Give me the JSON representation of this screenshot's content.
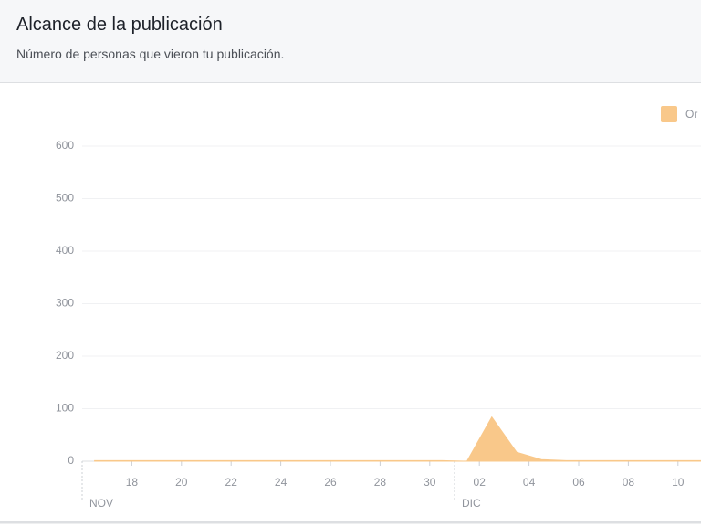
{
  "header": {
    "title": "Alcance de la publicación",
    "subtitle": "Número de personas que vieron tu publicación."
  },
  "chart_data": {
    "type": "area",
    "categories": [
      null,
      null,
      "18",
      null,
      "20",
      null,
      "22",
      null,
      "24",
      null,
      "26",
      null,
      "28",
      null,
      "30",
      null,
      "02",
      null,
      "04",
      null,
      "06",
      null,
      "08",
      null,
      "10",
      null
    ],
    "months": [
      "NOV",
      "DIC"
    ],
    "series": [
      {
        "name": "Or",
        "color": "#f9c88a",
        "values": [
          1,
          1,
          1,
          1,
          1,
          1,
          1,
          1,
          1,
          1,
          1,
          1,
          1,
          1,
          1,
          0,
          84,
          17,
          3,
          1,
          1,
          1,
          1,
          1,
          1,
          1
        ]
      }
    ],
    "ylim": [
      0,
      600
    ],
    "yticks": [
      0,
      100,
      200,
      300,
      400,
      500,
      600
    ],
    "grid": true
  }
}
